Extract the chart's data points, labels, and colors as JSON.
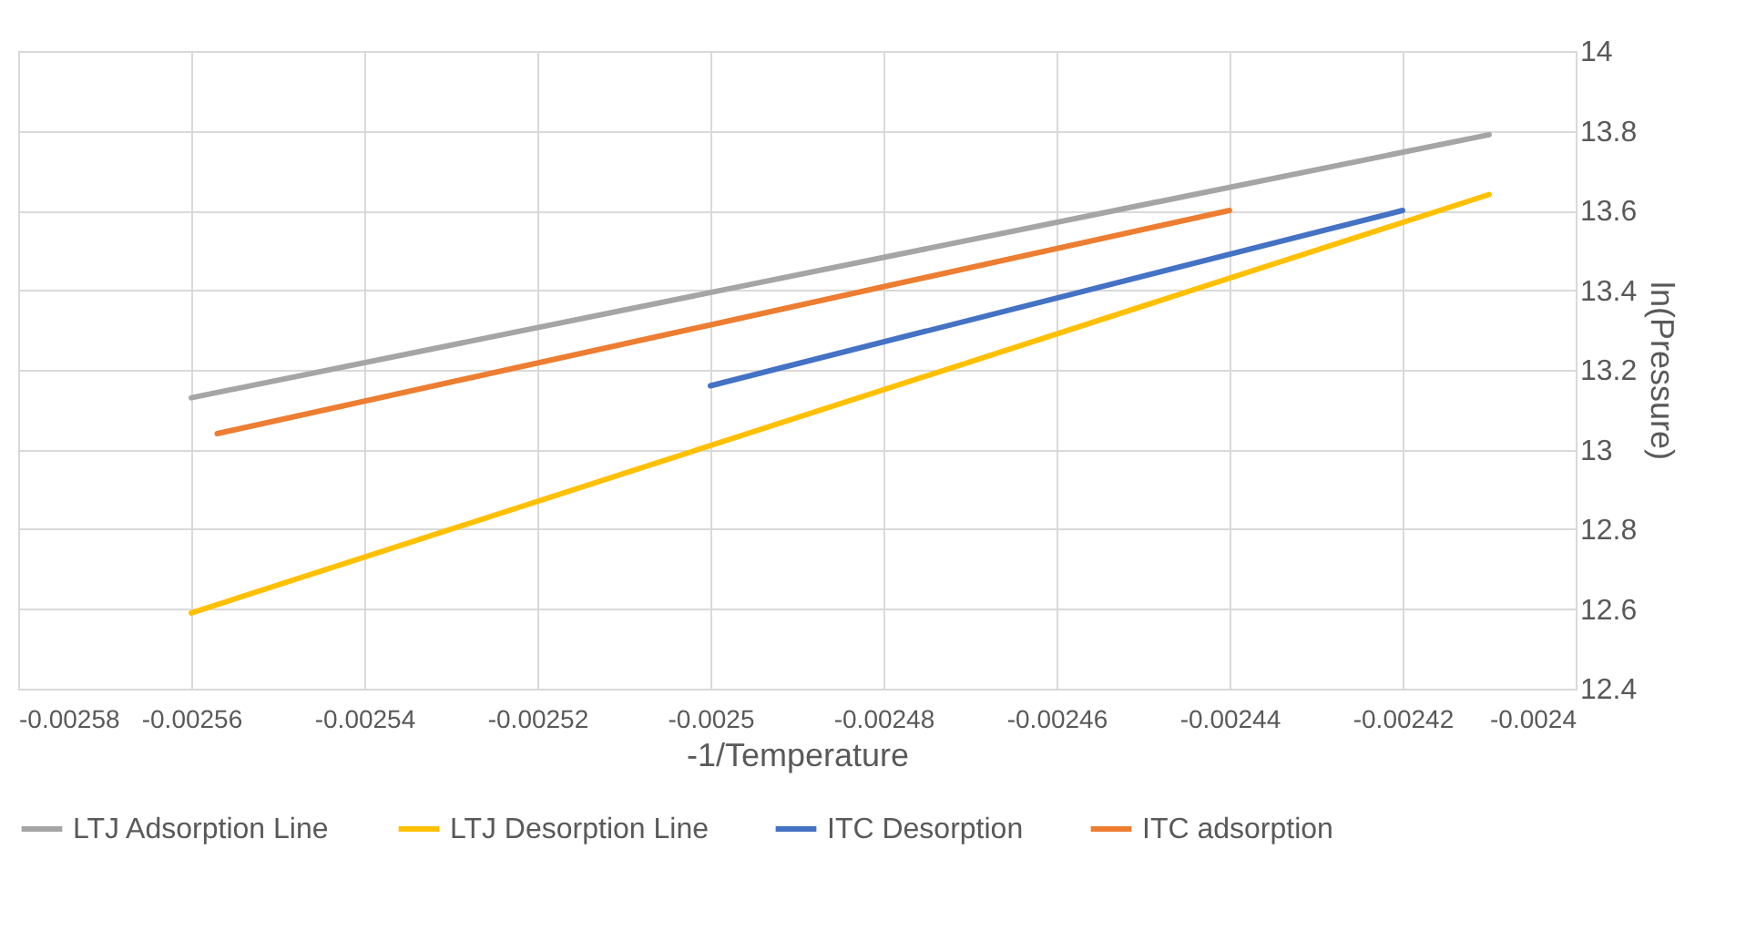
{
  "chart_data": {
    "type": "line",
    "xlabel": "-1/Temperature",
    "ylabel": "ln(Pressure)",
    "xlim": [
      -0.00258,
      -0.0024
    ],
    "xticks": [
      -0.00258,
      -0.00256,
      -0.00254,
      -0.00252,
      -0.0025,
      -0.00248,
      -0.00246,
      -0.00244,
      -0.00242,
      -0.0024
    ],
    "ylim": [
      12.4,
      14
    ],
    "yticks": [
      12.4,
      12.6,
      12.8,
      13,
      13.2,
      13.4,
      13.6,
      13.8,
      14
    ],
    "grid": true,
    "legend": "bottom",
    "marker": "none",
    "line_style": "solid",
    "series": [
      {
        "name": "LTJ Adsorption Line",
        "color": "#a5a5a5",
        "x": [
          -0.00256,
          -0.00241
        ],
        "values": [
          13.13,
          13.79
        ]
      },
      {
        "name": "LTJ Desorption Line",
        "color": "#ffc000",
        "x": [
          -0.00256,
          -0.00241
        ],
        "values": [
          12.59,
          13.64
        ]
      },
      {
        "name": "ITC Desorption",
        "color": "#4472c4",
        "x": [
          -0.0025,
          -0.00242
        ],
        "values": [
          13.16,
          13.6
        ]
      },
      {
        "name": "ITC adsorption",
        "color": "#ed7d31",
        "x": [
          -0.002557,
          -0.00244
        ],
        "values": [
          13.04,
          13.6
        ]
      }
    ]
  }
}
